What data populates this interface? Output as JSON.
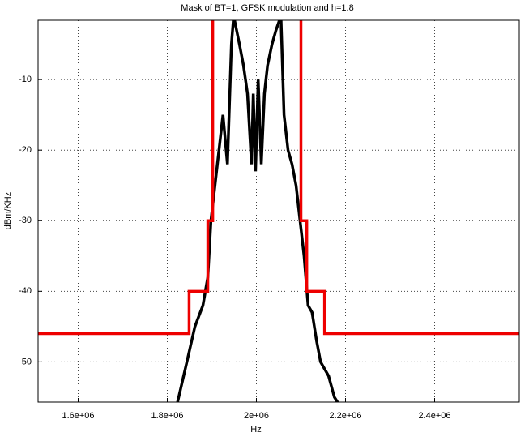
{
  "chart_data": {
    "type": "line",
    "title": "Mask of BT=1, GFSK modulation and h=1.8",
    "x_label": "Hz",
    "y_label": "dBm/KHz",
    "xlim": [
      1510000,
      2590000
    ],
    "ylim": [
      -55.7,
      -1.6
    ],
    "xticks": [
      {
        "value": 1600000,
        "label": "1.6e+06"
      },
      {
        "value": 1800000,
        "label": "1.8e+06"
      },
      {
        "value": 2000000,
        "label": "2e+06"
      },
      {
        "value": 2200000,
        "label": "2.2e+06"
      },
      {
        "value": 2400000,
        "label": "2.4e+06"
      }
    ],
    "yticks": [
      -10,
      -20,
      -30,
      -40,
      -50
    ],
    "grid": true,
    "series": [
      {
        "color": "#000000",
        "x": [
          1822000,
          1844000,
          1862000,
          1880000,
          1891000,
          1898000,
          1907000,
          1916000,
          1925000,
          1935000,
          1944000,
          1949000,
          1962000,
          1971000,
          1980000,
          1989000,
          1993000,
          1998000,
          2004000,
          2011000,
          2018000,
          2025000,
          2035000,
          2044000,
          2055000,
          2062000,
          2071000,
          2080000,
          2089000,
          2098000,
          2107000,
          2116000,
          2125000,
          2135000,
          2144000,
          2162000,
          2175000,
          2185000
        ],
        "values": [
          -56,
          -50,
          -45,
          -42,
          -38,
          -30,
          -25,
          -20,
          -15,
          -22,
          -5,
          -1,
          -5,
          -8,
          -12,
          -22,
          -12,
          -23,
          -10,
          -22,
          -12,
          -8,
          -5,
          -3,
          -1,
          -15,
          -20,
          -22,
          -25,
          -30,
          -35,
          -42,
          -43,
          -47,
          -50,
          -52,
          -55,
          -56
        ]
      },
      {
        "color": "#ee0000",
        "x": [
          1510000,
          1849000,
          1849000,
          1891000,
          1891000,
          1902000,
          1902000,
          2100000,
          2100000,
          2113000,
          2113000,
          2153000,
          2153000,
          2590000
        ],
        "values": [
          -46,
          -46,
          -40,
          -40,
          -30,
          -30,
          0,
          0,
          -30,
          -30,
          -40,
          -40,
          -46,
          -46
        ]
      }
    ]
  }
}
